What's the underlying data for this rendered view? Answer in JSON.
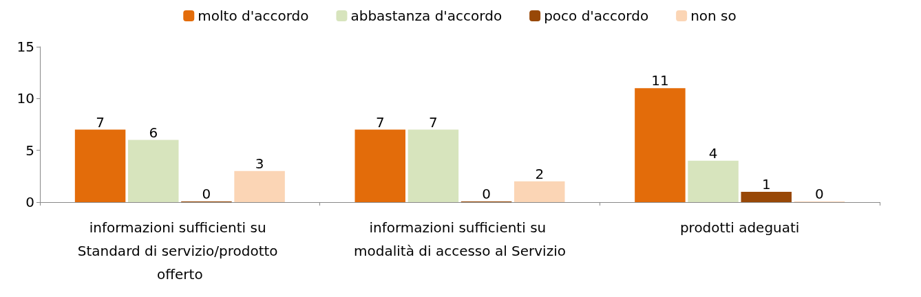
{
  "chart_data": {
    "type": "bar",
    "categories": [
      "informazioni sufficienti su Standard di servizio/prodotto offerto",
      "informazioni sufficienti su modalità di accesso al Servizio",
      "prodotti adeguati"
    ],
    "series": [
      {
        "name": "molto d'accordo",
        "color": "#e36c0a",
        "values": [
          7,
          7,
          11
        ]
      },
      {
        "name": "abbastanza d'accordo",
        "color": "#d7e4bd",
        "values": [
          6,
          7,
          4
        ]
      },
      {
        "name": "poco d'accordo",
        "color": "#984807",
        "values": [
          0,
          0,
          1
        ]
      },
      {
        "name": "non so",
        "color": "#fbd5b5",
        "values": [
          3,
          2,
          0
        ]
      }
    ],
    "ylim": [
      0,
      15
    ],
    "yticks": [
      0,
      5,
      10,
      15
    ],
    "grid": false,
    "legend": "top",
    "data_labels": true
  }
}
